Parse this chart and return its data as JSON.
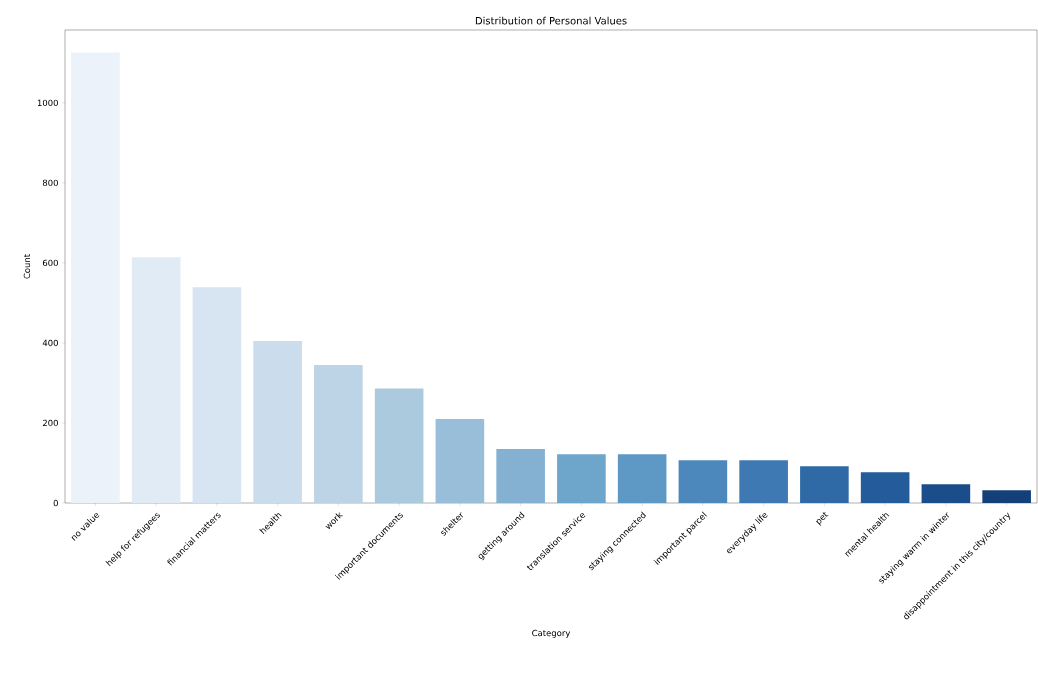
{
  "chart_data": {
    "type": "bar",
    "title": "Distribution of Personal Values",
    "xlabel": "Category",
    "ylabel": "Count",
    "categories": [
      "no value",
      "help for refugees",
      "financial matters",
      "health",
      "work",
      "important documents",
      "shelter",
      "getting around",
      "translation service",
      "staying connected",
      "important parcel",
      "everyday life",
      "pet",
      "mental health",
      "staying warm in winter",
      "disappointment in this city/country"
    ],
    "values": [
      1126,
      614,
      539,
      405,
      345,
      286,
      210,
      135,
      122,
      122,
      107,
      107,
      92,
      77,
      47,
      32
    ],
    "colors": [
      "#ebf2fa",
      "#e0ebf6",
      "#d7e4f1",
      "#cbdcec",
      "#bcd4e6",
      "#abcade",
      "#98bed9",
      "#84b1d2",
      "#6ea6cb",
      "#5e98c4",
      "#4c88bc",
      "#3e79b4",
      "#2f6aa7",
      "#245b9a",
      "#1a4d89",
      "#14407a"
    ],
    "ylim": [
      0,
      1182
    ],
    "yticks": [
      0,
      200,
      400,
      600,
      800,
      1000
    ],
    "grid": false
  }
}
